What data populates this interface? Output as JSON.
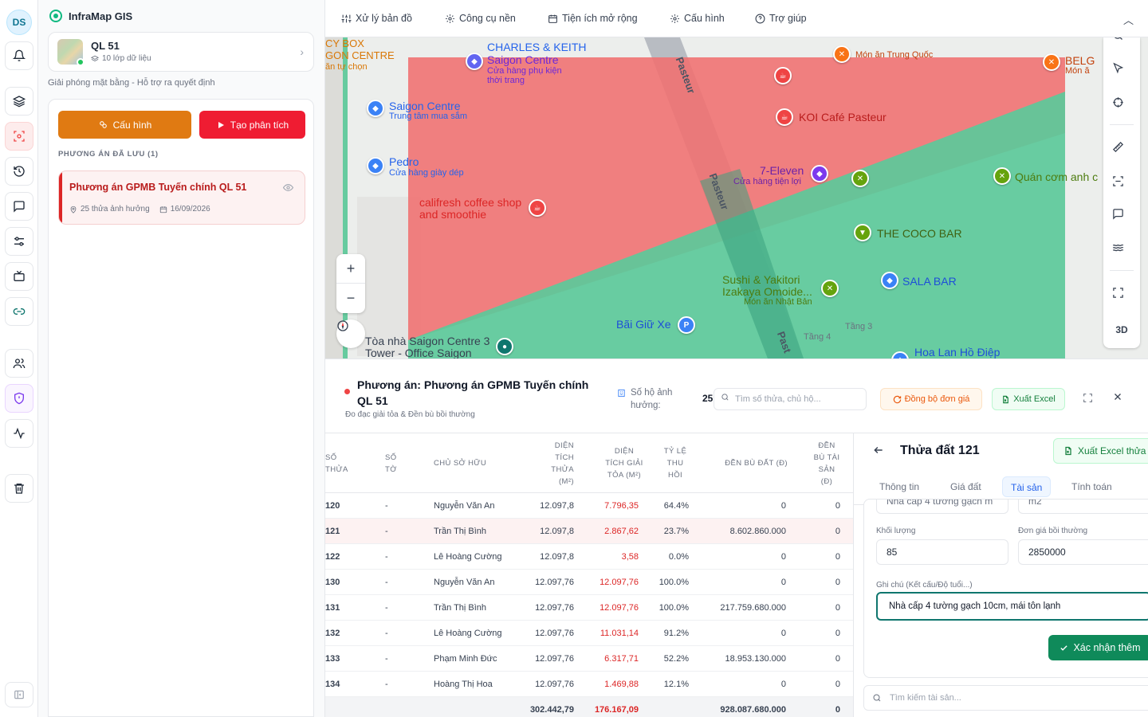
{
  "user": {
    "initials": "DS"
  },
  "app": {
    "title": "InfraMap GIS"
  },
  "rail": {
    "icons": [
      "bell-icon",
      "layers-icon",
      "scan-target-icon",
      "history-icon",
      "chat-icon",
      "sliders-icon",
      "monitor-icon",
      "link-icon",
      "users-icon",
      "shield-icon",
      "activity-icon",
      "trash-icon",
      "collapse-sidebar-icon"
    ],
    "active": "scan-target-icon",
    "accent": "#ef4444"
  },
  "project": {
    "name": "QL 51",
    "layers": "10 lớp dữ liệu",
    "description": "Giải phóng mặt bằng - Hỗ trợ ra quyết định"
  },
  "actions": {
    "config_label": "Cấu hình",
    "analyze_label": "Tạo phân tích",
    "config_color": "#e07a12",
    "analyze_color": "#ef1c32"
  },
  "saved": {
    "title": "PHƯƠNG ÁN ĐÃ LƯU (1)",
    "items": [
      {
        "name": "Phương án GPMB Tuyến chính QL 51",
        "parcels": "25 thửa ảnh hưởng",
        "date": "16/09/2026"
      }
    ]
  },
  "nav": {
    "items": [
      {
        "label": "Xử lý bản đồ",
        "icon": "sliders-icon"
      },
      {
        "label": "Công cụ nền",
        "icon": "gear-icon"
      },
      {
        "label": "Tiện ích mở rộng",
        "icon": "calendar-icon"
      },
      {
        "label": "Cấu hình",
        "icon": "gear-icon"
      },
      {
        "label": "Trợ giúp",
        "icon": "help-icon"
      }
    ]
  },
  "map": {
    "labels": {
      "charles": "CHARLES & KEITH",
      "saigon_centre_top": "Saigon Centre",
      "saigon_centre_top_sub": "Cửa hàng phụ kiện thời trang",
      "saigon_centre": "Saigon Centre",
      "saigon_centre_sub": "Trung tâm mua sắm",
      "pedro": "Pedro",
      "pedro_sub": "Cửa hàng giày dép",
      "califresh": "califresh coffee shop and smoothie",
      "koi": "KOI Café Pasteur",
      "seven": "7-Eleven",
      "seven_sub": "Cửa hàng tiện lợi",
      "chinese": "Món ăn Trung Quốc",
      "quan_com": "Quán cơm anh c",
      "coco": "THE COCO BAR",
      "sala": "SALA BAR",
      "sushi": "Sushi & Yakitori Izakaya Omoide...",
      "sushi_sub": "Món ăn Nhật Bản",
      "parking": "Bãi Giữ Xe",
      "tower": "Tòa nhà Saigon Centre 3 Tower - Office Saigon",
      "hoalan": "Hoa Lan Hồ Điệp",
      "cybox": "CY BOX",
      "gon_centre": "GON CENTRE",
      "an_tu_chon": "ăn tự chọn",
      "belg": "BELG",
      "mon_an": "Món ă",
      "floor3": "Tầng 3",
      "floor4": "Tầng 4",
      "street1": "Pasteur",
      "street2": "Pasteur",
      "street3": "Past"
    },
    "zoom_in": "+",
    "zoom_out": "−",
    "tools": [
      "search-icon",
      "cursor-icon",
      "crosshair-icon",
      "ruler-icon",
      "scan-icon",
      "comment-icon",
      "waves-icon",
      "fullscreen-icon"
    ],
    "mode_3d": "3D",
    "colors": {
      "affected": "#f07070",
      "zone": "#5cc99a"
    }
  },
  "plan": {
    "title": "Phương án: Phương án GPMB Tuyến chính QL 51",
    "subtitle": "Đo đạc giải tỏa & Đền bù bồi thường",
    "affected_label": "Số hộ ảnh hưởng:",
    "affected_count": "25",
    "search_placeholder": "Tìm số thửa, chủ hộ...",
    "sync_label": "Đồng bộ đơn giá",
    "export_label": "Xuất Excel"
  },
  "table": {
    "headers": {
      "parcel": "SỐ THỬA",
      "sheet": "SỐ TỜ",
      "owner": "CHỦ SỞ HỮU",
      "area": "DIỆN TÍCH THỬA (M²)",
      "cleared": "DIỆN TÍCH GIẢI TỎA (M²)",
      "ratio": "TỶ LỆ THU HỒI",
      "land_comp": "ĐỀN BÙ ĐẤT (Đ)",
      "asset_comp": "ĐỀN BÙ TÀI SẢN (Đ)"
    },
    "rows": [
      {
        "parcel": "120",
        "sheet": "-",
        "owner": "Nguyễn Văn An",
        "area": "12.097,8",
        "cleared": "7.796,35",
        "ratio": "64.4%",
        "land": "0",
        "asset": "0"
      },
      {
        "parcel": "121",
        "sheet": "-",
        "owner": "Trần Thị Bình",
        "area": "12.097,8",
        "cleared": "2.867,62",
        "ratio": "23.7%",
        "land": "8.602.860.000",
        "asset": "0"
      },
      {
        "parcel": "122",
        "sheet": "-",
        "owner": "Lê Hoàng Cường",
        "area": "12.097,8",
        "cleared": "3,58",
        "ratio": "0.0%",
        "land": "0",
        "asset": "0"
      },
      {
        "parcel": "130",
        "sheet": "-",
        "owner": "Nguyễn Văn An",
        "area": "12.097,76",
        "cleared": "12.097,76",
        "ratio": "100.0%",
        "land": "0",
        "asset": "0"
      },
      {
        "parcel": "131",
        "sheet": "-",
        "owner": "Trần Thị Bình",
        "area": "12.097,76",
        "cleared": "12.097,76",
        "ratio": "100.0%",
        "land": "217.759.680.000",
        "asset": "0"
      },
      {
        "parcel": "132",
        "sheet": "-",
        "owner": "Lê Hoàng Cường",
        "area": "12.097,76",
        "cleared": "11.031,14",
        "ratio": "91.2%",
        "land": "0",
        "asset": "0"
      },
      {
        "parcel": "133",
        "sheet": "-",
        "owner": "Phạm Minh Đức",
        "area": "12.097,76",
        "cleared": "6.317,71",
        "ratio": "52.2%",
        "land": "18.953.130.000",
        "asset": "0"
      },
      {
        "parcel": "134",
        "sheet": "-",
        "owner": "Hoàng Thị Hoa",
        "area": "12.097,76",
        "cleared": "1.469,88",
        "ratio": "12.1%",
        "land": "0",
        "asset": "0"
      }
    ],
    "totals": {
      "area": "302.442,79",
      "cleared": "176.167,09",
      "land": "928.087.680.000",
      "asset": "0"
    }
  },
  "detail": {
    "title": "Thửa đất 121",
    "export_label": "Xuất Excel thửa",
    "tabs": [
      "Thông tin",
      "Giá đất",
      "Tài sản",
      "Tính toán"
    ],
    "active_tab": "Tài sản",
    "prev_field_1": "Nhà cấp 4 tường gạch m",
    "prev_field_2": "m2",
    "quantity_label": "Khối lượng",
    "quantity_value": "85",
    "price_label": "Đơn giá bồi thường",
    "price_value": "2850000",
    "note_label": "Ghi chú (Kết cấu/Độ tuổi...)",
    "note_value": "Nhà cấp 4 tường gạch 10cm, mái tôn lạnh",
    "confirm_label": "Xác nhận thêm",
    "search_placeholder": "Tìm kiếm tài sản..."
  }
}
